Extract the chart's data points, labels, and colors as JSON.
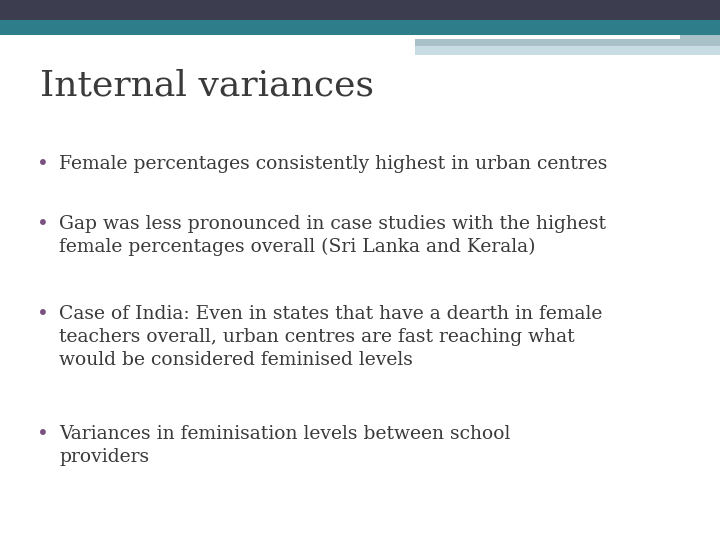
{
  "title": "Internal variances",
  "title_color": "#3a3a3a",
  "title_fontsize": 26,
  "title_font": "serif",
  "background_color": "#ffffff",
  "bullet_color": "#7a5080",
  "bullet_text_color": "#3a3a3a",
  "bullet_fontsize": 13.5,
  "bullet_font": "serif",
  "bullets": [
    "Female percentages consistently highest in urban centres",
    "Gap was less pronounced in case studies with the highest\nfemale percentages overall (Sri Lanka and Kerala)",
    "Case of India: Even in states that have a dearth in female\nteachers overall, urban centres are fast reaching what\nwould be considered feminised levels",
    "Variances in feminisation levels between school\nproviders"
  ],
  "header_dark_color": "#3d3d50",
  "header_teal_color": "#2e7d8a",
  "header_light1_color": "#a8c0c8",
  "header_light2_color": "#c8dde3",
  "header_white_color": "#ffffff"
}
